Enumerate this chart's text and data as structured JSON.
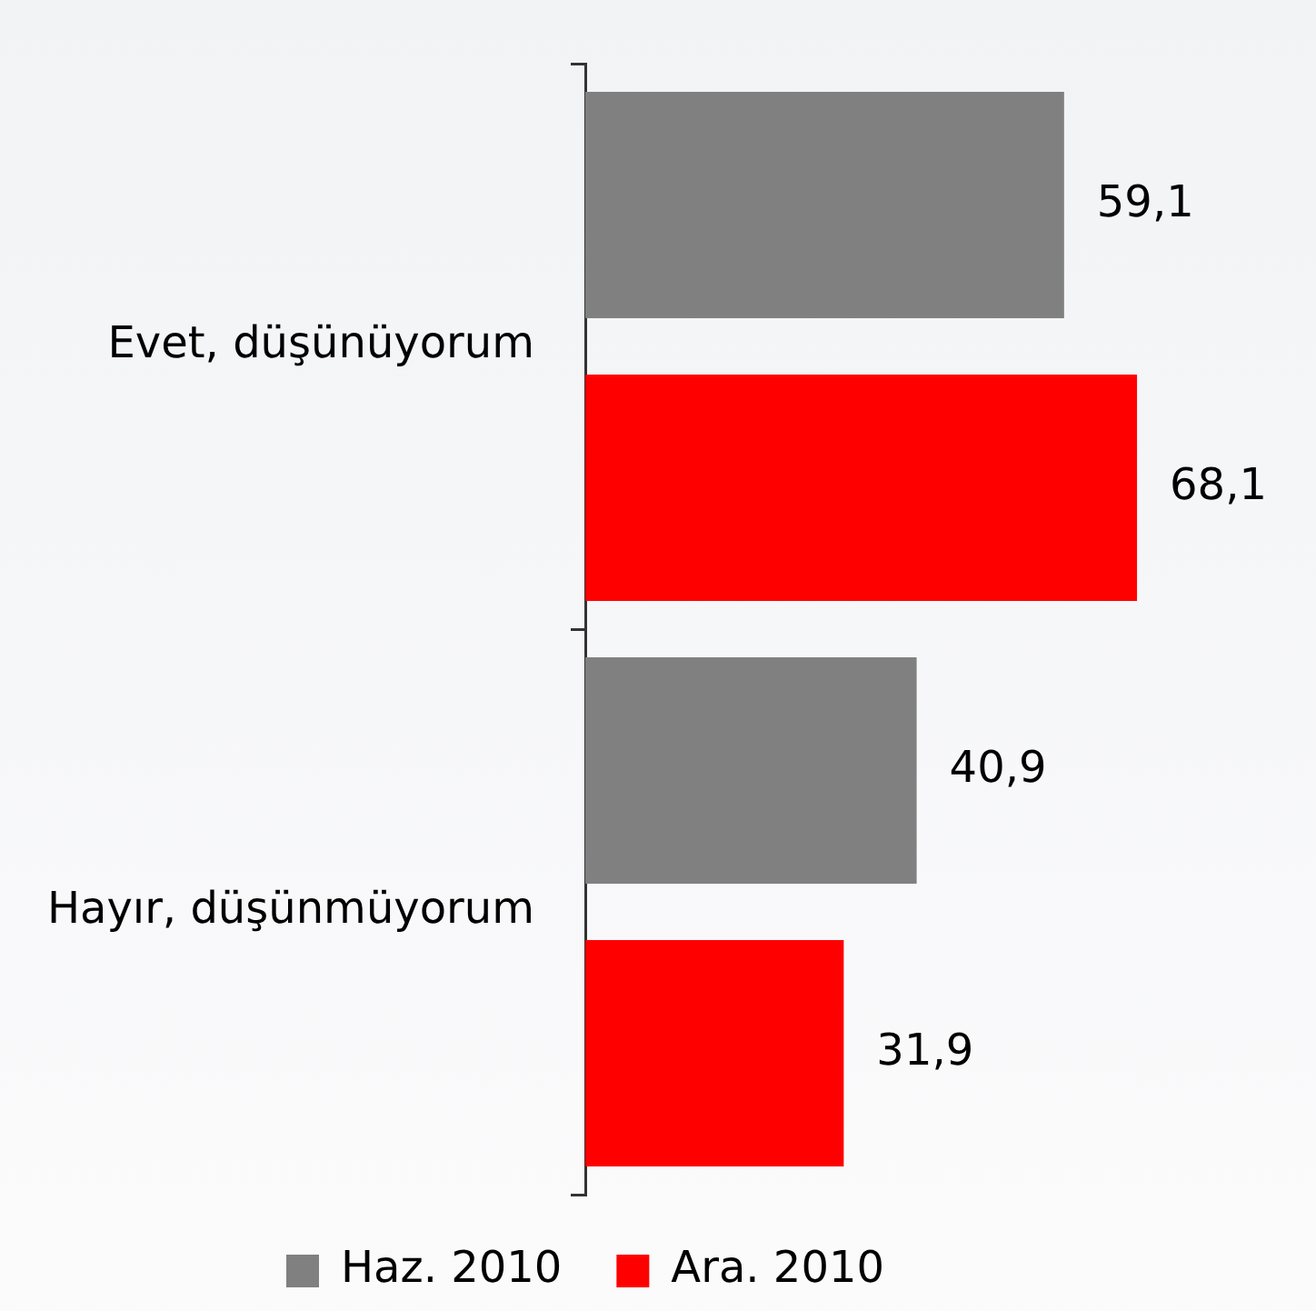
{
  "chart_data": {
    "type": "bar",
    "orientation": "horizontal",
    "categories": [
      "Evet, düşünüyorum",
      "Hayır, düşünmüyorum"
    ],
    "series": [
      {
        "name": "Haz. 2010",
        "color": "#808080",
        "values": [
          59.1,
          40.9
        ],
        "value_labels": [
          "59,1",
          "40,9"
        ]
      },
      {
        "name": "Ara. 2010",
        "color": "#ff0000",
        "values": [
          68.1,
          31.9
        ],
        "value_labels": [
          "68,1",
          "31,9"
        ]
      }
    ],
    "tick_labels": "y",
    "legend": "bottom",
    "grid": false
  }
}
